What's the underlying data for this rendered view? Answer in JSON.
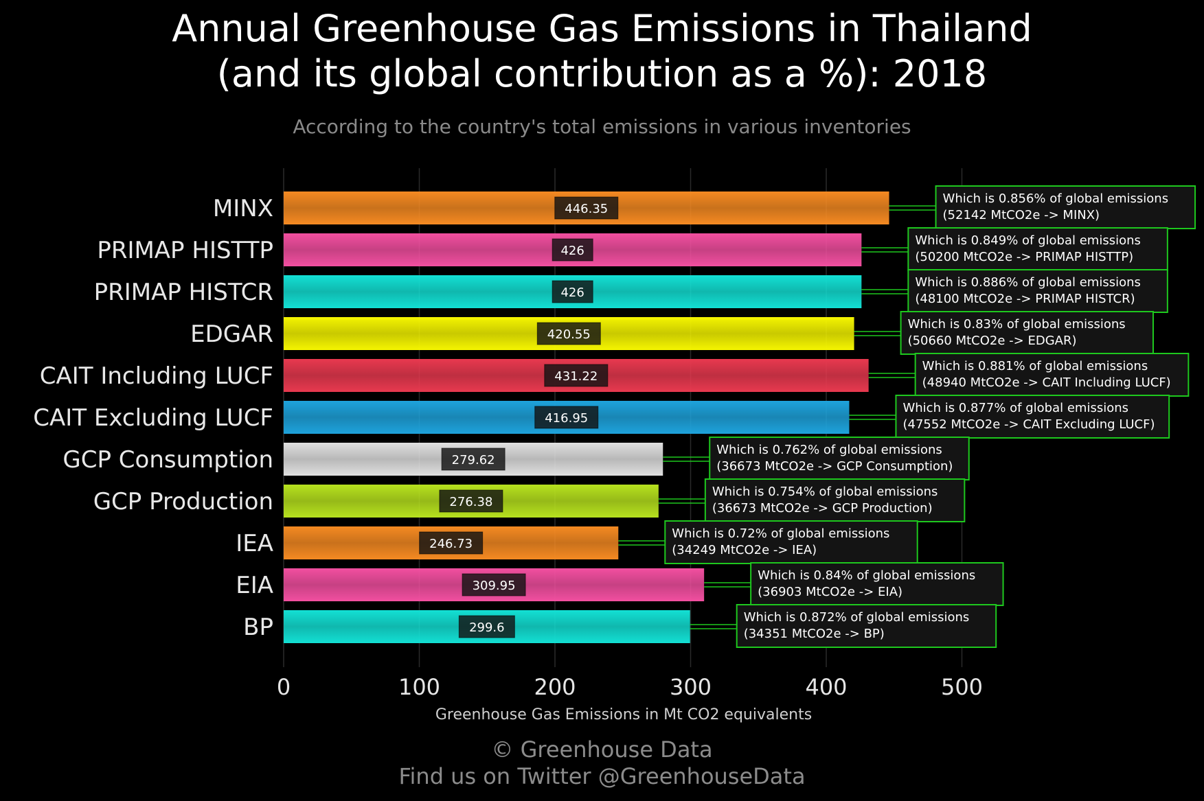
{
  "title_line1": "Annual Greenhouse Gas Emissions in Thailand",
  "title_line2": "(and its global contribution as a %): 2018",
  "subtitle": "According to the country's total emissions in various inventories",
  "footer_line1": "© Greenhouse Data",
  "footer_line2": "Find us on Twitter @GreenhouseData",
  "chart_data": {
    "type": "bar",
    "orientation": "horizontal",
    "xlabel": "Greenhouse Gas Emissions in Mt CO2 equivalents",
    "ylabel": "",
    "xlim": [
      0,
      500
    ],
    "xticks": [
      0,
      100,
      200,
      300,
      400,
      500
    ],
    "grid": true,
    "categories": [
      "MINX",
      "PRIMAP HISTTP",
      "PRIMAP HISTCR",
      "EDGAR",
      "CAIT Including LUCF",
      "CAIT Excluding LUCF",
      "GCP Consumption",
      "GCP Production",
      "IEA",
      "EIA",
      "BP"
    ],
    "values": [
      446.35,
      426,
      426,
      420.55,
      431.22,
      416.95,
      279.62,
      276.38,
      246.73,
      309.95,
      299.6
    ],
    "value_labels": [
      "446.35",
      "426",
      "426",
      "420.55",
      "431.22",
      "416.95",
      "279.62",
      "276.38",
      "246.73",
      "309.95",
      "299.6"
    ],
    "colors": [
      "#f58a22",
      "#f24fa0",
      "#13e0d4",
      "#f5f500",
      "#e8394f",
      "#1ea3dc",
      "#e0e0e0",
      "#b7e21e",
      "#f58a22",
      "#f24fa0",
      "#13e0d4"
    ],
    "annotations": [
      {
        "line1": "Which is 0.856% of global emissions",
        "line2": "(52142 MtCO2e -> MINX)"
      },
      {
        "line1": "Which is 0.849% of global emissions",
        "line2": "(50200 MtCO2e -> PRIMAP HISTTP)"
      },
      {
        "line1": "Which is 0.886% of global emissions",
        "line2": "(48100 MtCO2e -> PRIMAP HISTCR)"
      },
      {
        "line1": "Which is 0.83% of global emissions",
        "line2": "(50660 MtCO2e -> EDGAR)"
      },
      {
        "line1": "Which is 0.881% of global emissions",
        "line2": "(48940 MtCO2e -> CAIT Including LUCF)"
      },
      {
        "line1": "Which is 0.877% of global emissions",
        "line2": "(47552 MtCO2e -> CAIT Excluding LUCF)"
      },
      {
        "line1": "Which is 0.762% of global emissions",
        "line2": "(36673 MtCO2e -> GCP Consumption)"
      },
      {
        "line1": "Which is 0.754% of global emissions",
        "line2": "(36673 MtCO2e -> GCP Production)"
      },
      {
        "line1": "Which is 0.72% of global emissions",
        "line2": "(34249 MtCO2e -> IEA)"
      },
      {
        "line1": "Which is 0.84% of global emissions",
        "line2": "(36903 MtCO2e -> EIA)"
      },
      {
        "line1": "Which is 0.872% of global emissions",
        "line2": "(34351 MtCO2e -> BP)"
      }
    ],
    "annotation_border_color": "#1ec81e"
  }
}
